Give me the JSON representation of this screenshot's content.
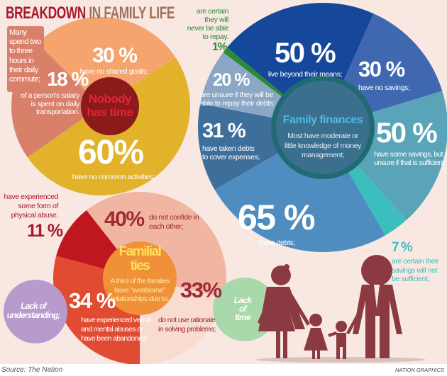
{
  "title": {
    "part1": "BREAKDOWN",
    "part2": "IN FAMILY LIFE",
    "color1": "#a8192e",
    "color2": "#a0715a"
  },
  "chart_data": [
    {
      "type": "pie",
      "title": "Nobody has time",
      "callout": "Many spend two to three hours in their daily commute;",
      "slices": [
        {
          "value_label": "30 %",
          "value": 30,
          "text": "have no shared goals;",
          "color": "#f4a46c"
        },
        {
          "value_label": "18 %",
          "value": 18,
          "text": [
            "of a person's salary",
            "is spent on daily",
            "transportation."
          ],
          "color": "#d9806b"
        },
        {
          "value_label": "60%",
          "value": 60,
          "text": "have no common activities;",
          "color": "#e3b22b"
        }
      ]
    },
    {
      "type": "pie",
      "title": "Family finances",
      "subtitle": [
        "Most have moderate or",
        "little knowledge of money",
        "management;"
      ],
      "slices": [
        {
          "value_label": "1%",
          "value": 1,
          "text": [
            "are certain",
            "they will",
            "never be able",
            "to repay."
          ],
          "color": "#2a8a3a"
        },
        {
          "value_label": "50 %",
          "value": 50,
          "text": "live beyond their means;",
          "color": "#15489a"
        },
        {
          "value_label": "30 %",
          "value": 30,
          "text": "have no savings;",
          "color": "#4068b0"
        },
        {
          "value_label": "50 %",
          "value": 50,
          "text": [
            "have some savings, but are",
            "unsure if that is sufficient;"
          ],
          "color": "#5aa4b9"
        },
        {
          "value_label": "7 %",
          "value": 7,
          "text": [
            "are certain their",
            "savings will not",
            "be sufficient;"
          ],
          "color": "#3dbebe"
        },
        {
          "value_label": "65 %",
          "value": 65,
          "text": "have debts;",
          "color": "#4f8dc1"
        },
        {
          "value_label": "31 %",
          "value": 31,
          "text": [
            "have taken debts",
            "to cover expenses;"
          ],
          "color": "#3e6f9b"
        },
        {
          "value_label": "20 %",
          "value": 20,
          "text": [
            "are unsure if they will be",
            "able to repay their debts;"
          ],
          "color": "#8ba7c5"
        }
      ]
    },
    {
      "type": "pie",
      "title": [
        "Familial",
        "ties"
      ],
      "subtitle": [
        "A third of the families",
        "have \"worrisome\"",
        "relationships due to:"
      ],
      "slices": [
        {
          "value_label": "40%",
          "value": 40,
          "text": [
            "do not confide in",
            "each other;"
          ],
          "color": "#f0b6a2"
        },
        {
          "value_label": "33%",
          "value": 33,
          "text": [
            "do not use rationale",
            "in solving problems;"
          ],
          "color": "#f9dcd0"
        },
        {
          "value_label": "34 %",
          "value": 34,
          "text": [
            "have experienced verbal",
            "and mental abuses or",
            "have been abandoned;"
          ],
          "color": "#e04b31"
        },
        {
          "value_label": "11 %",
          "value": 11,
          "text": [
            "have experienced",
            "some form of",
            "physical abuse."
          ],
          "color": "#c0161f"
        }
      ],
      "side_labels": [
        {
          "text": [
            "Lack of",
            "understanding;"
          ],
          "color": "#b89acc"
        },
        {
          "text": [
            "Lack",
            "of",
            "time"
          ],
          "color": "#a9d9aa"
        }
      ]
    }
  ],
  "footer": {
    "source": "Source: The Nation",
    "credit": "NATION GRAPHICS"
  }
}
